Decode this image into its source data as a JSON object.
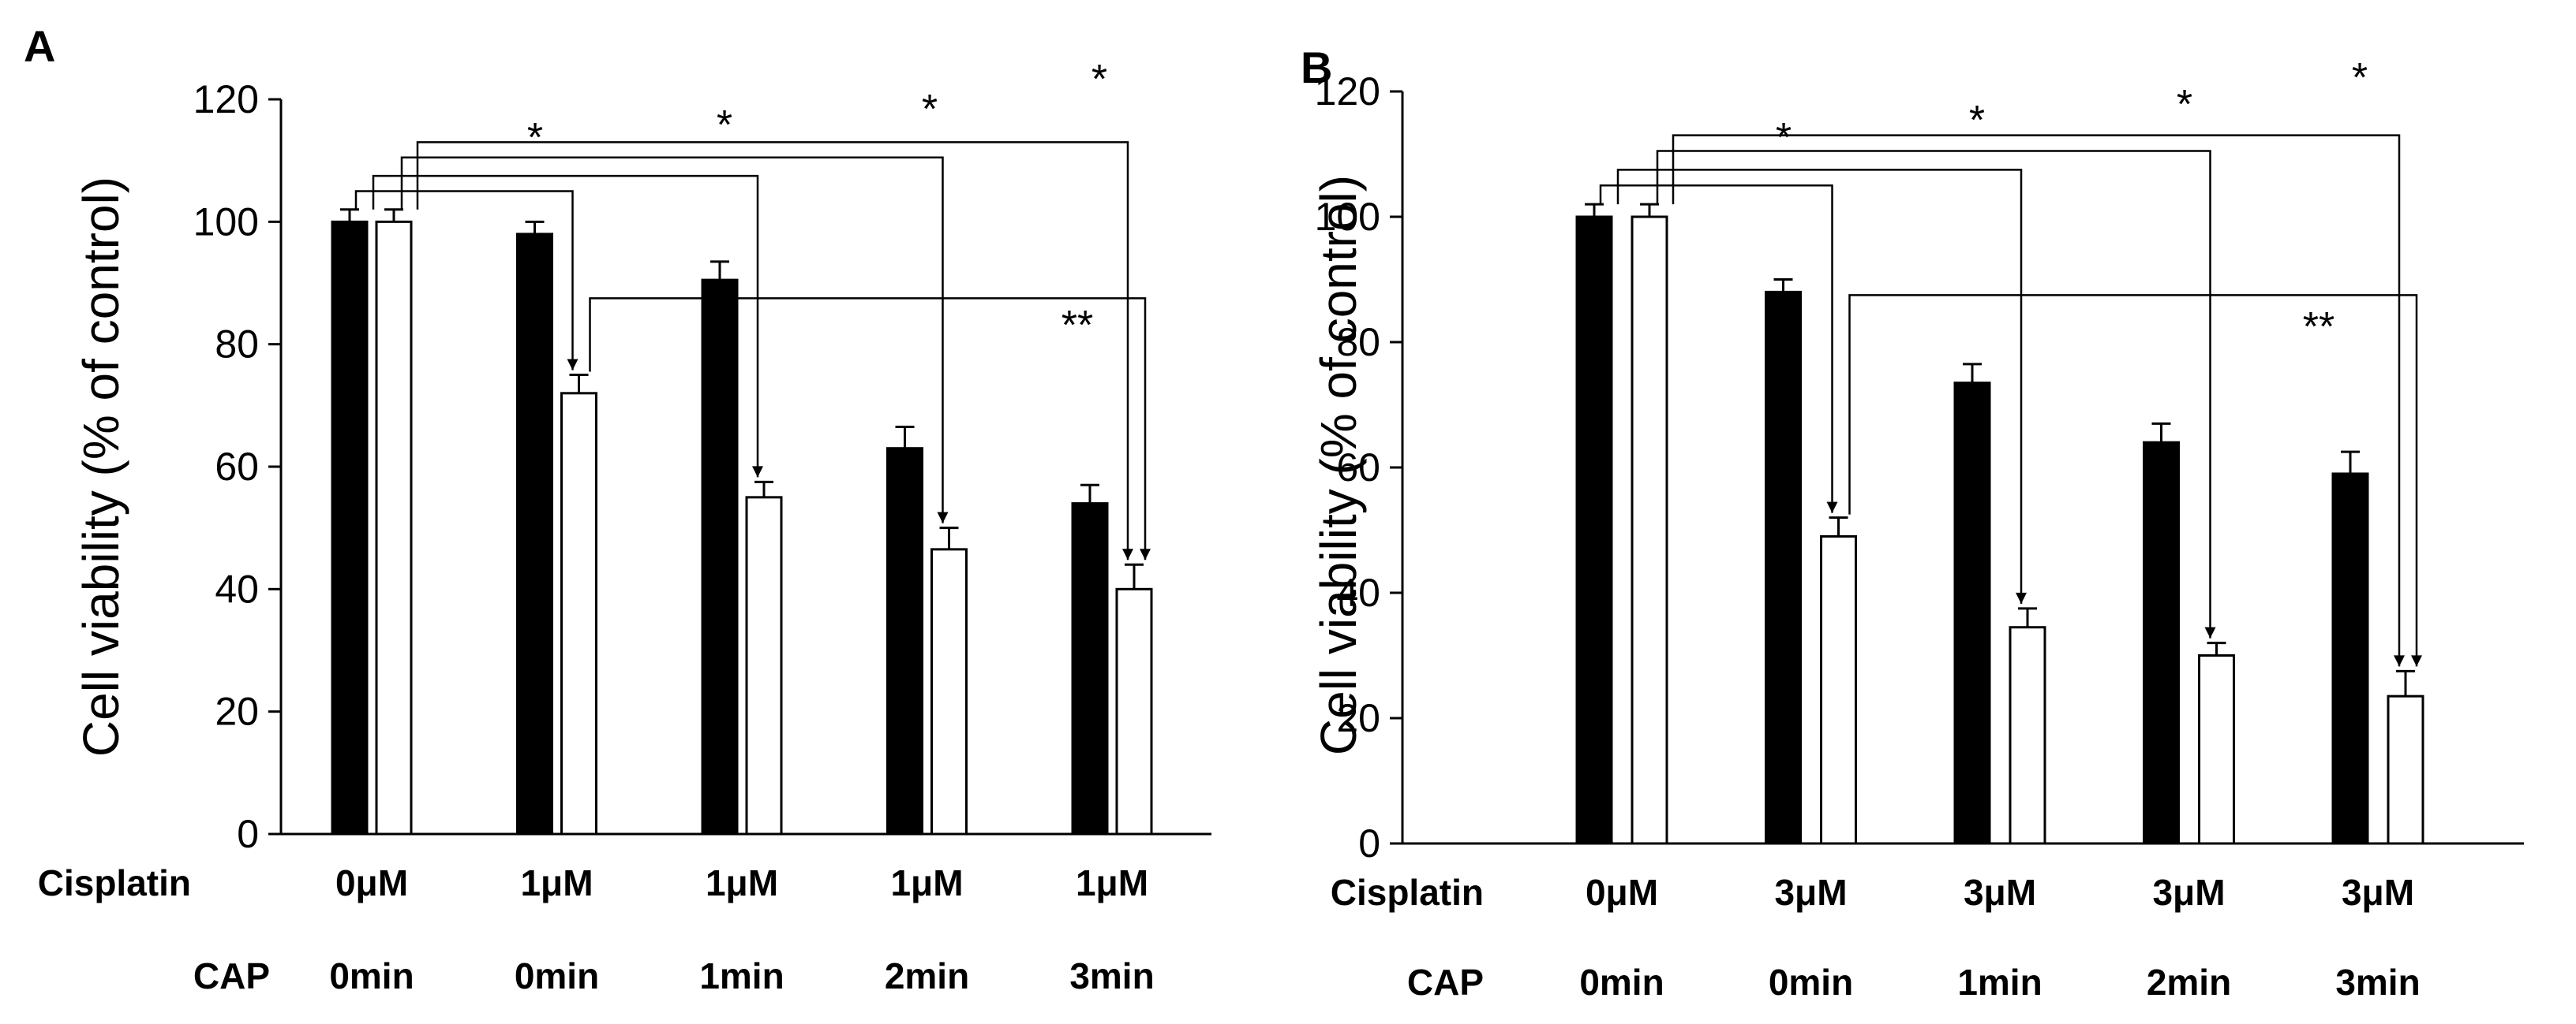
{
  "chart_data": [
    {
      "panel_label": "A",
      "type": "bar",
      "ylabel": "Cell viability (% of control)",
      "ylim": [
        0,
        120
      ],
      "yticks": [
        0,
        20,
        40,
        60,
        80,
        100,
        120
      ],
      "row_labels": [
        "Cisplatin",
        "CAP"
      ],
      "groups": [
        {
          "cisplatin": "0μM",
          "cap": "0min",
          "values": [
            100,
            100
          ],
          "errors": [
            2,
            2
          ]
        },
        {
          "cisplatin": "1μM",
          "cap": "0min",
          "values": [
            98,
            72
          ],
          "errors": [
            2,
            3
          ]
        },
        {
          "cisplatin": "1μM",
          "cap": "1min",
          "values": [
            90.5,
            55
          ],
          "errors": [
            3,
            2.5
          ]
        },
        {
          "cisplatin": "1μM",
          "cap": "2min",
          "values": [
            63,
            46.5
          ],
          "errors": [
            3.5,
            3.5
          ]
        },
        {
          "cisplatin": "1μM",
          "cap": "3min",
          "values": [
            54,
            40
          ],
          "errors": [
            3,
            4
          ]
        }
      ],
      "series_colors": [
        "#000000",
        "#ffffff"
      ],
      "significance": [
        {
          "from_group": 0,
          "to_group": 1,
          "label": "*"
        },
        {
          "from_group": 0,
          "to_group": 2,
          "label": "*"
        },
        {
          "from_group": 0,
          "to_group": 3,
          "label": "*"
        },
        {
          "from_group": 0,
          "to_group": 4,
          "label": "*"
        },
        {
          "from_group": 1,
          "to_group": 4,
          "label": "**"
        }
      ]
    },
    {
      "panel_label": "B",
      "type": "bar",
      "ylabel": "Cell viability (% of control)",
      "ylim": [
        0,
        120
      ],
      "yticks": [
        0,
        20,
        40,
        60,
        80,
        100,
        120
      ],
      "row_labels": [
        "Cisplatin",
        "CAP"
      ],
      "groups": [
        {
          "cisplatin": "0μM",
          "cap": "0min",
          "values": [
            100,
            100
          ],
          "errors": [
            2,
            2
          ]
        },
        {
          "cisplatin": "3μM",
          "cap": "0min",
          "values": [
            88,
            49
          ],
          "errors": [
            2,
            3
          ]
        },
        {
          "cisplatin": "3μM",
          "cap": "1min",
          "values": [
            73.5,
            34.5
          ],
          "errors": [
            3,
            3
          ]
        },
        {
          "cisplatin": "3μM",
          "cap": "2min",
          "values": [
            64,
            30
          ],
          "errors": [
            3,
            2
          ]
        },
        {
          "cisplatin": "3μM",
          "cap": "3min",
          "values": [
            59,
            23.5
          ],
          "errors": [
            3.5,
            4
          ]
        }
      ],
      "series_colors": [
        "#000000",
        "#ffffff"
      ],
      "significance": [
        {
          "from_group": 0,
          "to_group": 1,
          "label": "*"
        },
        {
          "from_group": 0,
          "to_group": 2,
          "label": "*"
        },
        {
          "from_group": 0,
          "to_group": 3,
          "label": "*"
        },
        {
          "from_group": 0,
          "to_group": 4,
          "label": "*"
        },
        {
          "from_group": 1,
          "to_group": 4,
          "label": "**"
        }
      ]
    }
  ]
}
